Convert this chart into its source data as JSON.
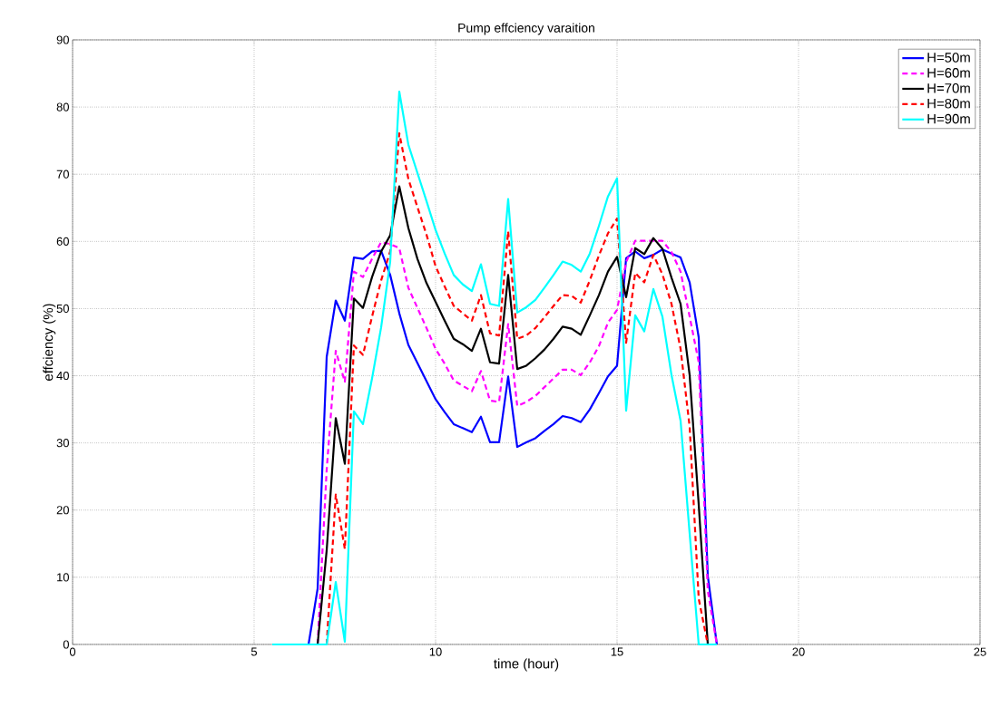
{
  "chart_data": {
    "type": "line",
    "title": "Pump effciency varaition",
    "xlabel": "time (hour)",
    "ylabel": "effciency (%)",
    "x": [
      5.5,
      5.75,
      6,
      6.25,
      6.5,
      6.75,
      7,
      7.25,
      7.5,
      7.75,
      8,
      8.25,
      8.5,
      8.75,
      9,
      9.25,
      9.5,
      9.75,
      10,
      10.25,
      10.5,
      10.75,
      11,
      11.25,
      11.5,
      11.75,
      12,
      12.25,
      12.5,
      12.75,
      13,
      13.25,
      13.5,
      13.75,
      14,
      14.25,
      14.5,
      14.75,
      15,
      15.25,
      15.5,
      15.75,
      16,
      16.25,
      16.5,
      16.75,
      17,
      17.25,
      17.5,
      17.75
    ],
    "series": [
      {
        "name": "H=50m",
        "color": "#0000ff",
        "line_style": "solid",
        "values": [
          null,
          null,
          null,
          null,
          0,
          8.3,
          42.8,
          51.2,
          48.2,
          57.6,
          57.4,
          58.5,
          58.6,
          55,
          49.3,
          44.6,
          41.9,
          39.2,
          36.5,
          34.6,
          32.8,
          32.2,
          31.6,
          33.9,
          30.1,
          30.1,
          39.9,
          29.4,
          30.1,
          30.7,
          31.8,
          32.8,
          34,
          33.7,
          33.1,
          35,
          37.4,
          39.9,
          41.5,
          57.5,
          58.5,
          57.5,
          58,
          58.8,
          58.2,
          57.6,
          53.9,
          45.7,
          10.2,
          0
        ]
      },
      {
        "name": "H=60m",
        "color": "#ff00ff",
        "line_style": "dashed",
        "values": [
          null,
          null,
          null,
          null,
          null,
          0,
          26,
          43.7,
          39.1,
          55.5,
          54.7,
          57.4,
          59.9,
          59.6,
          59,
          53.1,
          50.1,
          47.1,
          44,
          41.8,
          39.3,
          38.5,
          37.7,
          40.7,
          36.3,
          36.1,
          47.7,
          35.5,
          36.1,
          37,
          38.3,
          39.6,
          40.9,
          40.9,
          40.1,
          42,
          44.4,
          47.9,
          49.8,
          56.9,
          60.1,
          60.1,
          60.1,
          60.1,
          58.4,
          55.5,
          48.8,
          42,
          8,
          0
        ]
      },
      {
        "name": "H=70m",
        "color": "#000000",
        "line_style": "solid",
        "values": [
          null,
          null,
          null,
          null,
          null,
          0,
          14,
          33.7,
          26.9,
          51.5,
          50.1,
          54.7,
          58.5,
          60.9,
          68.2,
          62,
          57.4,
          53.8,
          51,
          48.2,
          45.5,
          44.7,
          43.7,
          47,
          42,
          41.8,
          55,
          41,
          41.5,
          42.6,
          43.9,
          45.5,
          47.3,
          47,
          46.1,
          49,
          52,
          55.5,
          57.7,
          51.7,
          59,
          58.1,
          60.5,
          58.9,
          54.6,
          50.7,
          40.1,
          20.8,
          0,
          0
        ]
      },
      {
        "name": "H=80m",
        "color": "#ff0000",
        "line_style": "dashed",
        "values": [
          null,
          null,
          null,
          null,
          null,
          null,
          0,
          22.3,
          14.2,
          44.5,
          43.1,
          48.8,
          54.2,
          58.5,
          76.1,
          69.3,
          65.1,
          61,
          56.3,
          53.3,
          50.4,
          49.3,
          48.2,
          52,
          46.3,
          46,
          61.5,
          45.5,
          46,
          47.1,
          48.7,
          50.4,
          52,
          51.9,
          50.9,
          54.2,
          57.9,
          61.2,
          63.4,
          44.9,
          55.3,
          53.9,
          58,
          55.1,
          50.7,
          44,
          32.4,
          6.8,
          0,
          0
        ]
      },
      {
        "name": "H=90m",
        "color": "#00ffff",
        "line_style": "solid",
        "values": [
          0,
          0,
          0,
          0,
          0,
          0,
          0,
          9.3,
          0.4,
          34.7,
          32.8,
          39.6,
          47.2,
          57,
          82.3,
          74.4,
          70.2,
          66,
          61.7,
          58.2,
          55,
          53.6,
          52.6,
          56.6,
          50.7,
          50.4,
          66.3,
          49.4,
          50.2,
          51.3,
          53.1,
          55,
          57,
          56.5,
          55.5,
          58.2,
          62.3,
          66.7,
          69.4,
          34.8,
          49,
          46.6,
          52.9,
          48.8,
          40.1,
          33.3,
          16.5,
          0,
          0,
          0
        ]
      }
    ],
    "xlim": [
      0,
      25
    ],
    "ylim": [
      0,
      90
    ],
    "xticks": [
      0,
      5,
      10,
      15,
      20,
      25
    ],
    "yticks": [
      0,
      10,
      20,
      30,
      40,
      50,
      60,
      70,
      80,
      90
    ],
    "grid": true,
    "legend": "top right"
  }
}
